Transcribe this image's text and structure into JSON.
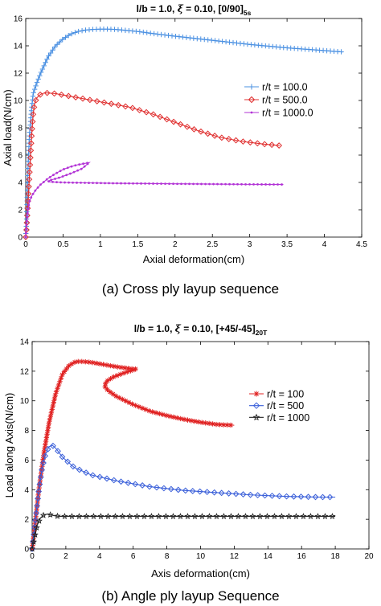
{
  "chart_data": [
    {
      "type": "line",
      "title_prefix": "l/b = 1.0, ",
      "title_greek": "ξ",
      "title_mid": " = 0.10, [0/90]",
      "title_sub": "5s",
      "xlabel": "Axial deformation(cm)",
      "ylabel": "Axial load(N/cm)",
      "xlim": [
        0,
        4.5
      ],
      "ylim": [
        0,
        16
      ],
      "xticks": [
        "0",
        "0.5",
        "1",
        "1.5",
        "2",
        "2.5",
        "3",
        "3.5",
        "4",
        "4.5"
      ],
      "yticks": [
        "0",
        "2",
        "4",
        "6",
        "8",
        "10",
        "12",
        "14",
        "16"
      ],
      "grid": false,
      "legend_position": "center-right",
      "caption": "(a) Cross ply layup sequence",
      "series": [
        {
          "name": "r/t = 100.0",
          "color": "#4a90e2",
          "marker": "plus",
          "x": [
            0,
            0.01,
            0.02,
            0.03,
            0.05,
            0.08,
            0.1,
            0.15,
            0.2,
            0.3,
            0.4,
            0.5,
            0.6,
            0.7,
            0.8,
            0.9,
            1.0,
            1.1,
            1.2,
            1.3,
            1.5,
            1.7,
            2.0,
            2.5,
            3.0,
            3.5,
            4.0,
            4.25
          ],
          "y": [
            0,
            1,
            3,
            5,
            7.5,
            9.5,
            10.5,
            11.3,
            12.0,
            13.2,
            14.0,
            14.5,
            14.85,
            15.05,
            15.15,
            15.2,
            15.22,
            15.22,
            15.2,
            15.15,
            15.05,
            14.9,
            14.7,
            14.4,
            14.1,
            13.85,
            13.65,
            13.55
          ]
        },
        {
          "name": "r/t = 500.0",
          "color": "#e03030",
          "marker": "diamond",
          "x": [
            0,
            0.01,
            0.02,
            0.04,
            0.06,
            0.08,
            0.1,
            0.12,
            0.15,
            0.2,
            0.25,
            0.3,
            0.4,
            0.5,
            0.7,
            0.9,
            1.1,
            1.4,
            1.7,
            2.0,
            2.3,
            2.6,
            2.9,
            3.2,
            3.4
          ],
          "y": [
            0,
            0.5,
            1.5,
            3.5,
            5.5,
            7.5,
            9.0,
            9.8,
            10.2,
            10.45,
            10.55,
            10.55,
            10.5,
            10.4,
            10.2,
            10.0,
            9.8,
            9.5,
            9.0,
            8.4,
            7.8,
            7.3,
            7.0,
            6.8,
            6.7
          ]
        },
        {
          "name": "r/t = 1000.0",
          "color": "#b233d6",
          "marker": "dot",
          "x": [
            0,
            0.01,
            0.03,
            0.05,
            0.08,
            0.12,
            0.15,
            0.2,
            0.3,
            0.4,
            0.5,
            0.6,
            0.7,
            0.8,
            0.85,
            0.75,
            0.6,
            0.45,
            0.35,
            0.3,
            0.32,
            0.5,
            0.8,
            1.2,
            1.6,
            2.0,
            2.5,
            3.0,
            3.45
          ],
          "y": [
            0,
            1.0,
            2.0,
            2.6,
            3.0,
            3.35,
            3.55,
            3.85,
            4.3,
            4.65,
            4.95,
            5.15,
            5.3,
            5.4,
            5.45,
            5.0,
            4.65,
            4.35,
            4.2,
            4.1,
            4.05,
            4.0,
            3.97,
            3.94,
            3.92,
            3.9,
            3.88,
            3.86,
            3.85
          ]
        }
      ]
    },
    {
      "type": "line",
      "title_prefix": "l/b = 1.0, ",
      "title_greek": "ξ",
      "title_mid": " = 0.10, [+45/-45]",
      "title_sub": "20T",
      "xlabel": "Axis deformation(cm)",
      "ylabel": "Load along Axis(N/cm)",
      "xlim": [
        0,
        20
      ],
      "ylim": [
        0,
        14
      ],
      "xticks": [
        "0",
        "2",
        "4",
        "6",
        "8",
        "10",
        "12",
        "14",
        "16",
        "18",
        "20"
      ],
      "yticks": [
        "0",
        "2",
        "4",
        "6",
        "8",
        "10",
        "12",
        "14"
      ],
      "grid": false,
      "legend_position": "center-right",
      "caption": "(b) Angle ply layup Sequence",
      "series": [
        {
          "name": "r/t = 100",
          "color": "#e02020",
          "marker": "asterisk",
          "x": [
            0,
            0.2,
            0.4,
            0.7,
            1.0,
            1.4,
            1.8,
            2.2,
            2.6,
            3.0,
            3.5,
            4.0,
            5.0,
            6.0,
            6.2,
            5.5,
            4.8,
            4.4,
            4.3,
            4.5,
            5.0,
            6.0,
            7.0,
            8.0,
            9.0,
            10.0,
            11.0,
            12.0
          ],
          "y": [
            0,
            2.0,
            4.0,
            6.5,
            8.5,
            10.5,
            11.8,
            12.4,
            12.65,
            12.65,
            12.6,
            12.5,
            12.3,
            12.15,
            12.15,
            11.9,
            11.6,
            11.3,
            11.0,
            10.7,
            10.3,
            9.75,
            9.3,
            9.0,
            8.75,
            8.55,
            8.4,
            8.35
          ]
        },
        {
          "name": "r/t = 500",
          "color": "#3a5fd9",
          "marker": "diamond",
          "x": [
            0,
            0.2,
            0.4,
            0.6,
            0.8,
            1.0,
            1.2,
            1.4,
            1.8,
            2.5,
            3.5,
            5.0,
            7.0,
            9.0,
            11.0,
            13.0,
            15.0,
            17.0,
            18.0
          ],
          "y": [
            0,
            2.0,
            4.0,
            5.5,
            6.4,
            6.9,
            7.0,
            6.8,
            6.2,
            5.5,
            5.0,
            4.6,
            4.2,
            3.95,
            3.8,
            3.65,
            3.55,
            3.5,
            3.5
          ]
        },
        {
          "name": "r/t = 1000",
          "color": "#222222",
          "marker": "star",
          "x": [
            0,
            0.15,
            0.3,
            0.5,
            0.7,
            0.9,
            1.1,
            1.3,
            1.6,
            2.0,
            2.5,
            3.0,
            4.0,
            6.0,
            8.0,
            10.0,
            12.0,
            14.0,
            16.0,
            18.0
          ],
          "y": [
            0,
            0.8,
            1.6,
            2.1,
            2.3,
            2.35,
            2.3,
            2.25,
            2.2,
            2.2,
            2.2,
            2.2,
            2.2,
            2.2,
            2.2,
            2.2,
            2.2,
            2.2,
            2.2,
            2.2
          ]
        }
      ]
    }
  ]
}
